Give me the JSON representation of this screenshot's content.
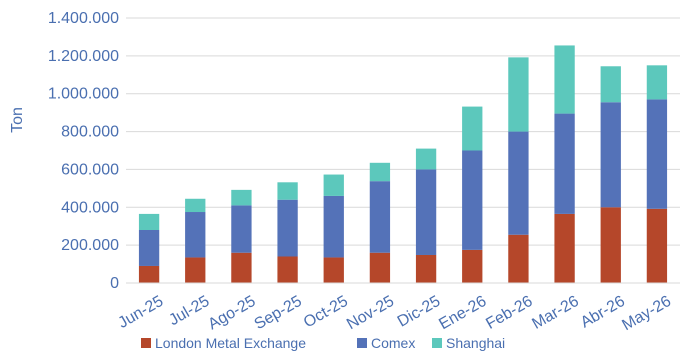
{
  "chart_data": {
    "type": "bar",
    "stacked": true,
    "ylabel": "Ton",
    "ylim": [
      0,
      1400000
    ],
    "y_ticks": [
      "0",
      "200.000",
      "400.000",
      "600.000",
      "800.000",
      "1.000.000",
      "1.200.000",
      "1.400.000"
    ],
    "y_tick_values": [
      0,
      200000,
      400000,
      600000,
      800000,
      1000000,
      1200000,
      1400000
    ],
    "categories": [
      "Jun-25",
      "Jul-25",
      "Ago-25",
      "Sep-25",
      "Oct-25",
      "Nov-25",
      "Dic-25",
      "Ene-26",
      "Feb-26",
      "Mar-26",
      "Abr-26",
      "May-26"
    ],
    "series": [
      {
        "name": "London Metal Exchange",
        "color": "#b5472a",
        "values": [
          90000,
          135000,
          160000,
          140000,
          135000,
          160000,
          148000,
          175000,
          255000,
          365000,
          400000,
          392000
        ]
      },
      {
        "name": "Comex",
        "color": "#5472b8",
        "values": [
          190000,
          240000,
          250000,
          300000,
          325000,
          378000,
          452000,
          525000,
          545000,
          530000,
          555000,
          578000
        ]
      },
      {
        "name": "Shanghai",
        "color": "#5cc8bc",
        "values": [
          85000,
          70000,
          82000,
          92000,
          113000,
          97000,
          110000,
          232000,
          392000,
          360000,
          190000,
          180000
        ]
      }
    ],
    "grid": true,
    "legend_position": "bottom"
  }
}
